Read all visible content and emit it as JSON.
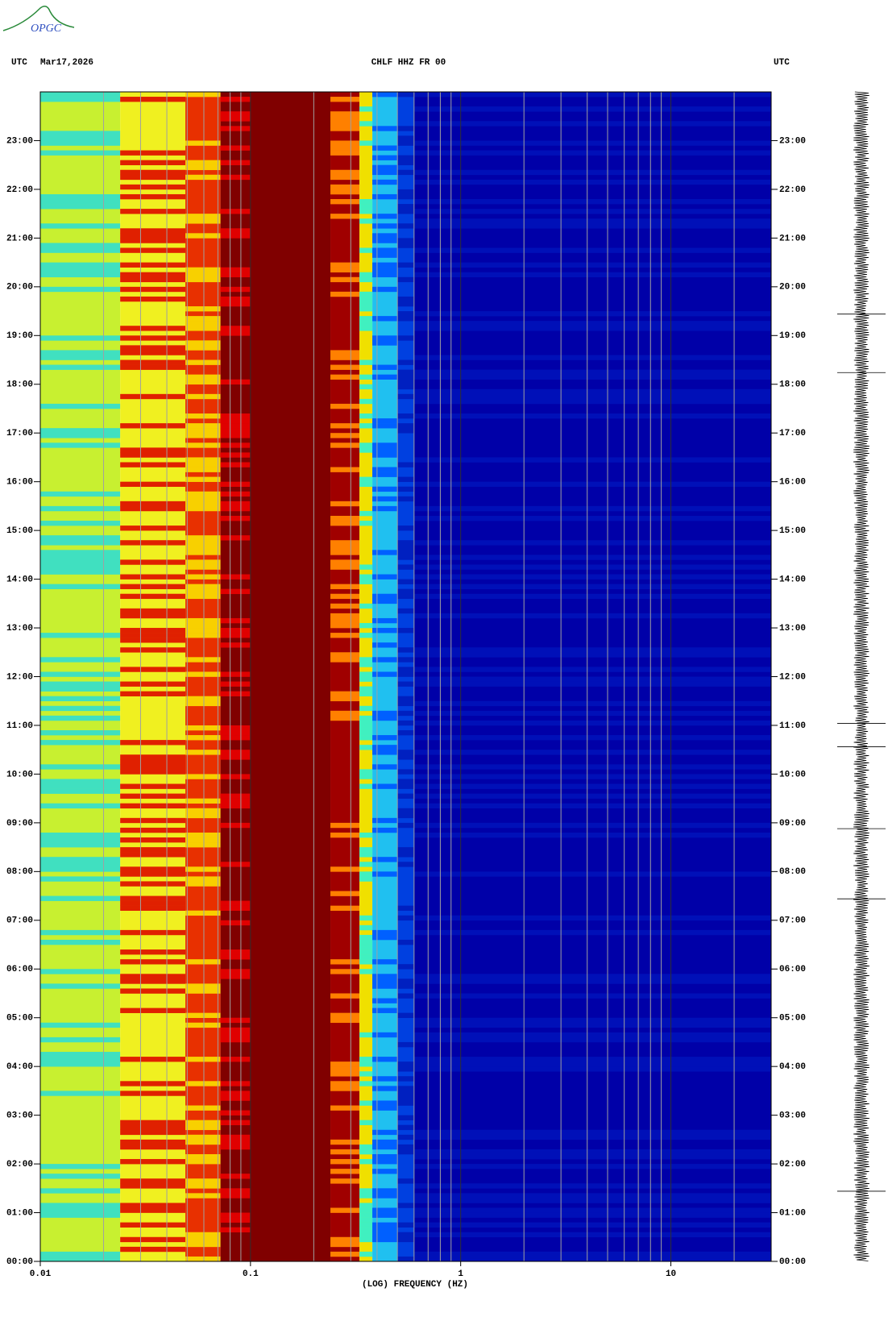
{
  "chart_data": {
    "type": "spectrogram",
    "logo": "OPGC",
    "left_header": "UTC",
    "date": "Mar17,2026",
    "title": "CHLF HHZ FR 00",
    "right_header": "UTC",
    "xlabel": "(LOG) FREQUENCY (HZ)",
    "xscale": "log",
    "xlim": [
      0.01,
      30
    ],
    "xticks": [
      0.01,
      0.1,
      1,
      10
    ],
    "x_minor_ticks": [
      0.02,
      0.03,
      0.04,
      0.05,
      0.06,
      0.07,
      0.08,
      0.09,
      0.2,
      0.3,
      0.4,
      0.5,
      0.6,
      0.7,
      0.8,
      0.9,
      2,
      3,
      4,
      5,
      6,
      7,
      8,
      9,
      20
    ],
    "ylim": [
      0,
      24
    ],
    "yticks": [
      {
        "value": 0,
        "label": "00:00"
      },
      {
        "value": 1,
        "label": "01:00"
      },
      {
        "value": 2,
        "label": "02:00"
      },
      {
        "value": 3,
        "label": "03:00"
      },
      {
        "value": 4,
        "label": "04:00"
      },
      {
        "value": 5,
        "label": "05:00"
      },
      {
        "value": 6,
        "label": "06:00"
      },
      {
        "value": 7,
        "label": "07:00"
      },
      {
        "value": 8,
        "label": "08:00"
      },
      {
        "value": 9,
        "label": "09:00"
      },
      {
        "value": 10,
        "label": "10:00"
      },
      {
        "value": 11,
        "label": "11:00"
      },
      {
        "value": 12,
        "label": "12:00"
      },
      {
        "value": 13,
        "label": "13:00"
      },
      {
        "value": 14,
        "label": "14:00"
      },
      {
        "value": 15,
        "label": "15:00"
      },
      {
        "value": 16,
        "label": "16:00"
      },
      {
        "value": 17,
        "label": "17:00"
      },
      {
        "value": 18,
        "label": "18:00"
      },
      {
        "value": 19,
        "label": "19:00"
      },
      {
        "value": 20,
        "label": "20:00"
      },
      {
        "value": 21,
        "label": "21:00"
      },
      {
        "value": 22,
        "label": "22:00"
      },
      {
        "value": 23,
        "label": "23:00"
      }
    ],
    "bands": [
      {
        "from": 0.01,
        "to": 0.024,
        "color": "#c8f030",
        "alt_color": "#40e0c0"
      },
      {
        "from": 0.024,
        "to": 0.049,
        "color": "#f0f020",
        "alt_color": "#e02000"
      },
      {
        "from": 0.049,
        "to": 0.072,
        "color": "#e83000",
        "alt_color": "#f8d000"
      },
      {
        "from": 0.072,
        "to": 0.1,
        "color": "#800000",
        "alt_color": "#e00000"
      },
      {
        "from": 0.1,
        "to": 0.24,
        "color": "#800000",
        "alt_color": "#800000"
      },
      {
        "from": 0.24,
        "to": 0.33,
        "color": "#a00000",
        "alt_color": "#ff8000"
      },
      {
        "from": 0.33,
        "to": 0.38,
        "color": "#f0e000",
        "alt_color": "#40f0c0"
      },
      {
        "from": 0.38,
        "to": 0.5,
        "color": "#20c0f0",
        "alt_color": "#0060ff"
      },
      {
        "from": 0.5,
        "to": 0.6,
        "color": "#0040e0",
        "alt_color": "#0020c0"
      },
      {
        "from": 0.6,
        "to": 30,
        "color": "#0000a8",
        "alt_color": "#0010b8"
      }
    ]
  }
}
